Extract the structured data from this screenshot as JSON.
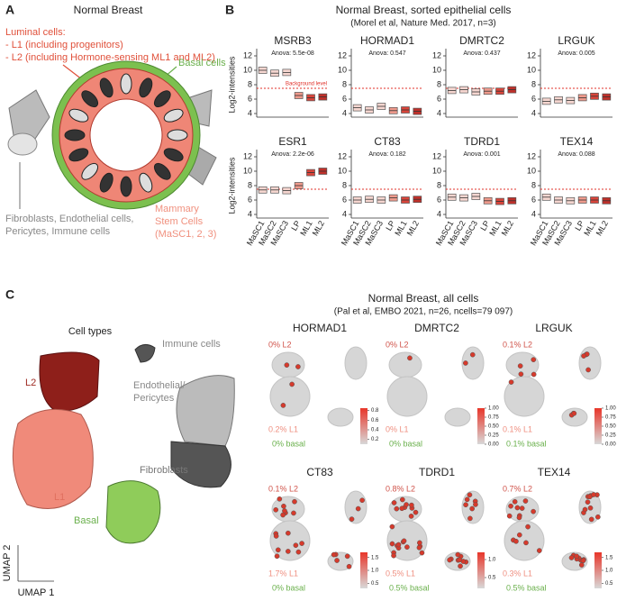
{
  "panel_a": {
    "letter": "A",
    "title": "Normal Breast",
    "luminal": [
      "Luminal cells:",
      "- L1 (including progenitors)",
      "- L2 (including Hormone-sensing ML1 and ML2)"
    ],
    "basal": "Basal cells",
    "stroma": [
      "Fibroblasts, Endothelial cells,",
      "Pericytes, Immune cells"
    ],
    "stem": [
      "Mammary",
      "Stem Cells",
      "(MaSC1, 2, 3)"
    ]
  },
  "panel_b": {
    "letter": "B",
    "title": "Normal Breast, sorted epithelial cells",
    "subtitle": "(Morel et al, Nature Med. 2017, n=3)",
    "y_label": "Log2-intensities",
    "background_label": "Background level",
    "background_level": 7.5,
    "categories": [
      "MaSC1",
      "MaSC2",
      "MaSC3",
      "LP",
      "ML1",
      "ML2"
    ],
    "colors": [
      "#f6d6d0",
      "#f6d6d0",
      "#f6d6d0",
      "#ef9a8c",
      "#d9453b",
      "#c0302a"
    ],
    "ylim": [
      3.5,
      12.5
    ],
    "yticks": [
      4,
      6,
      8,
      10,
      12
    ],
    "genes": [
      {
        "name": "MSRB3",
        "anova": "Anova: 5.5e-08",
        "values": [
          10,
          9.6,
          9.7,
          6.5,
          6.2,
          6.3
        ]
      },
      {
        "name": "HORMAD1",
        "anova": "Anova: 0.547",
        "values": [
          4.8,
          4.5,
          5.0,
          4.4,
          4.5,
          4.3
        ]
      },
      {
        "name": "DMRTC2",
        "anova": "Anova: 0.437",
        "values": [
          7.2,
          7.3,
          7.0,
          7.1,
          7.1,
          7.3
        ]
      },
      {
        "name": "LRGUK",
        "anova": "Anova: 0.005",
        "values": [
          5.7,
          5.9,
          5.8,
          6.2,
          6.4,
          6.3
        ]
      },
      {
        "name": "ESR1",
        "anova": "Anova: 2.2e-06",
        "values": [
          7.4,
          7.4,
          7.3,
          8.0,
          9.8,
          10.0
        ]
      },
      {
        "name": "CT83",
        "anova": "Anova: 0.182",
        "values": [
          6.0,
          6.1,
          6.0,
          6.3,
          6.0,
          6.1
        ]
      },
      {
        "name": "TDRD1",
        "anova": "Anova: 0.001",
        "values": [
          6.4,
          6.3,
          6.5,
          5.9,
          5.8,
          5.9
        ]
      },
      {
        "name": "TEX14",
        "anova": "Anova: 0.088",
        "values": [
          6.4,
          6.0,
          5.9,
          6.0,
          6.0,
          5.9
        ]
      }
    ]
  },
  "panel_c": {
    "letter": "C",
    "title": "Normal Breast, all cells",
    "subtitle": "(Pal et al, EMBO 2021, n=26, ncells=79 097)",
    "cell_types_title": "Cell types",
    "l2": "L2",
    "l1": "L1",
    "basal": "Basal",
    "immune": "Immune cells",
    "endothelial": [
      "Endothelial/",
      "Pericytes"
    ],
    "fibroblasts": "Fibroblasts",
    "umap1": "UMAP 1",
    "umap2": "UMAP 2",
    "genes": [
      {
        "name": "HORMAD1",
        "l2": "0% L2",
        "l1": "0.2% L1",
        "basal": "0% basal",
        "lim": [
          0.1,
          0.85
        ],
        "ticks": [
          0.2,
          0.4,
          0.6,
          0.8
        ]
      },
      {
        "name": "DMRTC2",
        "l2": "0% L2",
        "l1": "0% L1",
        "basal": "0% basal",
        "lim": [
          0,
          1
        ],
        "ticks": [
          {
            "value": 0,
            "label": "0.00"
          },
          0.25,
          {
            "value": 0.5,
            "label": "0.50"
          },
          0.75,
          {
            "value": 1,
            "label": "1.00"
          }
        ]
      },
      {
        "name": "LRGUK",
        "l2": "0.1% L2",
        "l1": "0.1% L1",
        "basal": "0.1% basal",
        "lim": [
          0,
          1
        ],
        "ticks": [
          {
            "value": 0,
            "label": "0.00"
          },
          0.25,
          {
            "value": 0.5,
            "label": "0.50"
          },
          0.75,
          {
            "value": 1,
            "label": "1.00"
          }
        ]
      },
      {
        "name": "CT83",
        "l2": "0.1% L2",
        "l1": "1.7% L1",
        "basal": "0% basal",
        "lim": [
          0.3,
          1.7
        ],
        "ticks": [
          0.5,
          {
            "value": 1,
            "label": "1.0"
          },
          1.5
        ]
      },
      {
        "name": "TDRD1",
        "l2": "0.8% L2",
        "l1": "0.5% L1",
        "basal": "0.5% basal",
        "lim": [
          0.2,
          1.2
        ],
        "ticks": [
          0.5,
          {
            "value": 1,
            "label": "1.0"
          }
        ]
      },
      {
        "name": "TEX14",
        "l2": "0.7% L2",
        "l1": "0.3% L1",
        "basal": "0.5% basal",
        "lim": [
          0.3,
          1.7
        ],
        "ticks": [
          0.5,
          {
            "value": 1,
            "label": "1.0"
          },
          1.5
        ]
      }
    ]
  }
}
